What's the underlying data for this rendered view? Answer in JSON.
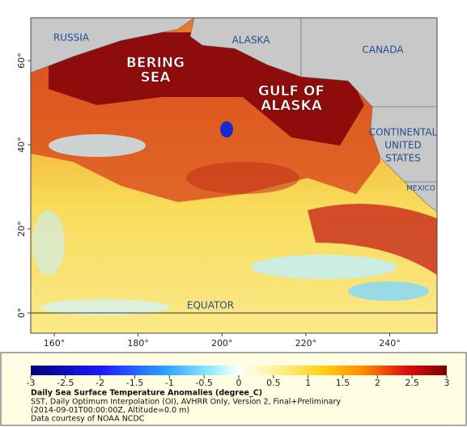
{
  "map": {
    "labels": [
      {
        "lines": [
          "RUSSIA"
        ],
        "style": "region"
      },
      {
        "lines": [
          "BERING",
          "SEA"
        ],
        "style": "sea"
      },
      {
        "lines": [
          "ALASKA"
        ],
        "style": "region"
      },
      {
        "lines": [
          "CANADA"
        ],
        "style": "region"
      },
      {
        "lines": [
          "GULF OF",
          "ALASKA"
        ],
        "style": "sea"
      },
      {
        "lines": [
          "CONTINENTAL",
          "UNITED",
          "STATES"
        ],
        "style": "region"
      },
      {
        "lines": [
          "MEXICO"
        ],
        "style": "small"
      },
      {
        "lines": [
          "EQUATOR"
        ],
        "style": "region"
      }
    ],
    "xlim": [
      154.4,
      251.3
    ],
    "ylim": [
      -4.8,
      70.2
    ],
    "xticks": [
      {
        "value": 160,
        "label": "160°"
      },
      {
        "value": 180,
        "label": "180°"
      },
      {
        "value": 200,
        "label": "200°"
      },
      {
        "value": 220,
        "label": "220°"
      },
      {
        "value": 240,
        "label": "240°"
      }
    ],
    "yticks": [
      {
        "value": 0,
        "label": "0°"
      },
      {
        "value": 20,
        "label": "20°"
      },
      {
        "value": 40,
        "label": "40°"
      },
      {
        "value": 60,
        "label": "60°"
      }
    ]
  },
  "colorbar": {
    "lim": [
      -3,
      3
    ],
    "ticks": [
      -3,
      -2.5,
      -2,
      -1.5,
      -1,
      -0.5,
      0,
      0.5,
      1,
      1.5,
      2,
      2.5,
      3
    ]
  },
  "caption": {
    "title": "Daily Sea Surface Temperature Anomalies (degree_C)",
    "lines": [
      "SST, Daily Optimum Interpolation (OI), AVHRR Only, Version 2, Final+Preliminary",
      "(2014-09-01T00:00:00Z, Altitude=0.0 m)",
      "Data courtesy of NOAA NCDC"
    ]
  }
}
